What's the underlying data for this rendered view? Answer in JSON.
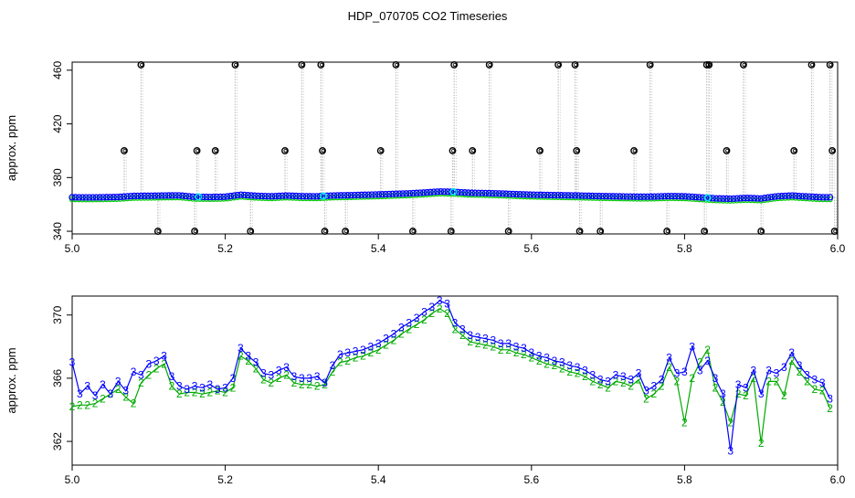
{
  "title": "HDP_070705  CO2 Timeseries",
  "colors": {
    "upper_raw": "#000000",
    "upper_line": "#bdbdbd",
    "upper_primary": "#0000ff",
    "upper_secondary": "#00cc00",
    "upper_accent": "#00e5ee",
    "lower_series_3": "#0000ff",
    "lower_series_2": "#00aa00"
  },
  "chart_data": [
    {
      "type": "scatter",
      "title": "HDP_070705  CO2 Timeseries",
      "xlabel": "",
      "ylabel": "approx. ppm",
      "xlim": [
        5.0,
        6.0
      ],
      "ylim": [
        338,
        466
      ],
      "xticks": [
        "5.0",
        "5.2",
        "5.4",
        "5.6",
        "5.8",
        "6.0"
      ],
      "yticks": [
        "340",
        "380",
        "420",
        "460"
      ],
      "grid": false,
      "outliers": {
        "x": [
          5.068,
          5.09,
          5.112,
          5.16,
          5.163,
          5.187,
          5.213,
          5.233,
          5.278,
          5.3,
          5.325,
          5.327,
          5.33,
          5.357,
          5.403,
          5.423,
          5.445,
          5.495,
          5.497,
          5.499,
          5.523,
          5.545,
          5.57,
          5.611,
          5.635,
          5.657,
          5.659,
          5.663,
          5.69,
          5.734,
          5.755,
          5.777,
          5.826,
          5.829,
          5.832,
          5.855,
          5.877,
          5.9,
          5.943,
          5.966,
          5.99,
          5.993,
          5.996
        ],
        "y": [
          400,
          464,
          340,
          340,
          400,
          400,
          464,
          340,
          400,
          464,
          464,
          400,
          340,
          340,
          400,
          464,
          340,
          340,
          400,
          464,
          400,
          464,
          340,
          400,
          464,
          464,
          400,
          340,
          340,
          400,
          464,
          340,
          340,
          464,
          464,
          400,
          464,
          340,
          400,
          464,
          464,
          400,
          340
        ]
      },
      "series": [
        {
          "x": [
            5.0,
            5.02,
            5.04,
            5.06,
            5.08,
            5.1,
            5.12,
            5.14,
            5.16,
            5.18,
            5.2,
            5.22,
            5.24,
            5.26,
            5.28,
            5.3,
            5.32,
            5.34,
            5.36,
            5.38,
            5.4,
            5.42,
            5.44,
            5.46,
            5.48,
            5.5,
            5.52,
            5.54,
            5.56,
            5.58,
            5.6,
            5.62,
            5.64,
            5.66,
            5.68,
            5.7,
            5.72,
            5.74,
            5.76,
            5.78,
            5.8,
            5.82,
            5.84,
            5.86,
            5.88,
            5.9,
            5.92,
            5.94,
            5.96,
            5.98
          ],
          "y": [
            365.3,
            365.2,
            365.3,
            365.5,
            366.3,
            366.4,
            366.6,
            366.7,
            365.6,
            365.5,
            365.7,
            367.2,
            366.4,
            366.0,
            366.6,
            366.1,
            366.0,
            366.6,
            366.8,
            367.1,
            367.4,
            367.8,
            368.2,
            368.8,
            369.6,
            369.3,
            368.6,
            368.4,
            368.1,
            367.6,
            367.2,
            367.0,
            366.8,
            366.6,
            366.3,
            366.1,
            365.9,
            365.7,
            365.8,
            366.2,
            366.0,
            365.3,
            364.5,
            364.2,
            364.8,
            364.4,
            366.0,
            366.6,
            365.9,
            365.3
          ]
        }
      ]
    },
    {
      "type": "scatter",
      "title": "",
      "xlabel": "",
      "ylabel": "approx. ppm",
      "xlim": [
        5.0,
        6.0
      ],
      "ylim": [
        360.5,
        371.2
      ],
      "xticks": [
        "5.0",
        "5.2",
        "5.4",
        "5.6",
        "5.8",
        "6.0"
      ],
      "yticks": [
        "362",
        "366",
        "370"
      ],
      "grid": false,
      "marker_labels": [
        "3",
        "2"
      ],
      "series": [
        {
          "marker": "3",
          "x": [
            5.0,
            5.01,
            5.02,
            5.03,
            5.04,
            5.05,
            5.06,
            5.07,
            5.08,
            5.09,
            5.1,
            5.11,
            5.12,
            5.13,
            5.14,
            5.15,
            5.16,
            5.17,
            5.18,
            5.19,
            5.2,
            5.21,
            5.22,
            5.23,
            5.24,
            5.25,
            5.26,
            5.27,
            5.28,
            5.29,
            5.3,
            5.31,
            5.32,
            5.33,
            5.34,
            5.35,
            5.36,
            5.37,
            5.38,
            5.39,
            5.4,
            5.41,
            5.42,
            5.43,
            5.44,
            5.45,
            5.46,
            5.47,
            5.48,
            5.49,
            5.5,
            5.51,
            5.52,
            5.53,
            5.54,
            5.55,
            5.56,
            5.57,
            5.58,
            5.59,
            5.6,
            5.61,
            5.62,
            5.63,
            5.64,
            5.65,
            5.66,
            5.67,
            5.68,
            5.69,
            5.7,
            5.71,
            5.72,
            5.73,
            5.74,
            5.75,
            5.76,
            5.77,
            5.78,
            5.79,
            5.8,
            5.81,
            5.82,
            5.83,
            5.84,
            5.85,
            5.86,
            5.87,
            5.88,
            5.89,
            5.9,
            5.91,
            5.92,
            5.93,
            5.94,
            5.95,
            5.96,
            5.97,
            5.98,
            5.99
          ],
          "y": [
            367.0,
            365.0,
            365.5,
            364.9,
            365.6,
            365.0,
            365.8,
            365.2,
            366.4,
            366.2,
            366.9,
            367.1,
            367.4,
            366.1,
            365.5,
            365.3,
            365.5,
            365.4,
            365.6,
            365.3,
            365.4,
            366.0,
            367.9,
            367.4,
            367.0,
            366.3,
            366.2,
            366.5,
            366.7,
            366.1,
            366.0,
            366.0,
            366.1,
            365.7,
            366.8,
            367.5,
            367.6,
            367.7,
            367.8,
            368.0,
            368.2,
            368.5,
            368.8,
            369.2,
            369.5,
            369.8,
            370.2,
            370.5,
            370.9,
            370.7,
            369.5,
            369.1,
            368.7,
            368.6,
            368.5,
            368.4,
            368.2,
            368.2,
            368.0,
            367.9,
            367.6,
            367.4,
            367.3,
            367.1,
            367.0,
            366.8,
            366.7,
            366.5,
            366.2,
            365.9,
            365.8,
            366.2,
            366.1,
            365.9,
            366.3,
            365.2,
            365.5,
            365.9,
            367.3,
            366.3,
            366.4,
            368.0,
            366.5,
            367.1,
            366.0,
            365.0,
            361.4,
            365.6,
            365.4,
            366.5,
            365.0,
            366.5,
            366.3,
            366.7,
            367.6,
            366.8,
            366.2,
            365.9,
            365.7,
            364.7
          ]
        },
        {
          "marker": "2",
          "x": [
            5.0,
            5.01,
            5.02,
            5.03,
            5.04,
            5.05,
            5.06,
            5.07,
            5.08,
            5.09,
            5.1,
            5.11,
            5.12,
            5.13,
            5.14,
            5.15,
            5.16,
            5.17,
            5.18,
            5.19,
            5.2,
            5.21,
            5.22,
            5.23,
            5.24,
            5.25,
            5.26,
            5.27,
            5.28,
            5.29,
            5.3,
            5.31,
            5.32,
            5.33,
            5.34,
            5.35,
            5.36,
            5.37,
            5.38,
            5.39,
            5.4,
            5.41,
            5.42,
            5.43,
            5.44,
            5.45,
            5.46,
            5.47,
            5.48,
            5.49,
            5.5,
            5.51,
            5.52,
            5.53,
            5.54,
            5.55,
            5.56,
            5.57,
            5.58,
            5.59,
            5.6,
            5.61,
            5.62,
            5.63,
            5.64,
            5.65,
            5.66,
            5.67,
            5.68,
            5.69,
            5.7,
            5.71,
            5.72,
            5.73,
            5.74,
            5.75,
            5.76,
            5.77,
            5.78,
            5.79,
            5.8,
            5.81,
            5.82,
            5.83,
            5.84,
            5.85,
            5.86,
            5.87,
            5.88,
            5.89,
            5.9,
            5.91,
            5.92,
            5.93,
            5.94,
            5.95,
            5.96,
            5.97,
            5.98,
            5.99
          ],
          "y": [
            364.2,
            364.3,
            364.3,
            364.4,
            364.7,
            365.0,
            365.3,
            364.8,
            364.4,
            365.7,
            366.2,
            366.6,
            366.9,
            365.5,
            365.0,
            365.1,
            365.1,
            365.0,
            365.1,
            365.2,
            365.1,
            365.4,
            367.4,
            367.1,
            366.6,
            365.9,
            365.7,
            366.0,
            366.2,
            365.7,
            365.6,
            365.6,
            365.5,
            365.6,
            366.4,
            367.0,
            367.1,
            367.3,
            367.4,
            367.6,
            367.8,
            368.1,
            368.4,
            368.8,
            369.1,
            369.4,
            369.7,
            370.1,
            370.4,
            370.1,
            369.1,
            368.7,
            368.3,
            368.2,
            368.1,
            368.0,
            367.8,
            367.8,
            367.6,
            367.5,
            367.3,
            367.1,
            366.9,
            366.8,
            366.6,
            366.4,
            366.3,
            366.1,
            365.8,
            365.6,
            365.4,
            365.8,
            365.7,
            365.5,
            365.9,
            364.7,
            365.0,
            365.5,
            366.7,
            365.8,
            363.2,
            366.0,
            367.0,
            367.8,
            365.4,
            364.5,
            363.2,
            365.0,
            364.9,
            366.0,
            361.9,
            365.8,
            365.8,
            364.9,
            367.1,
            366.4,
            365.8,
            365.3,
            365.2,
            364.1
          ]
        }
      ]
    }
  ]
}
